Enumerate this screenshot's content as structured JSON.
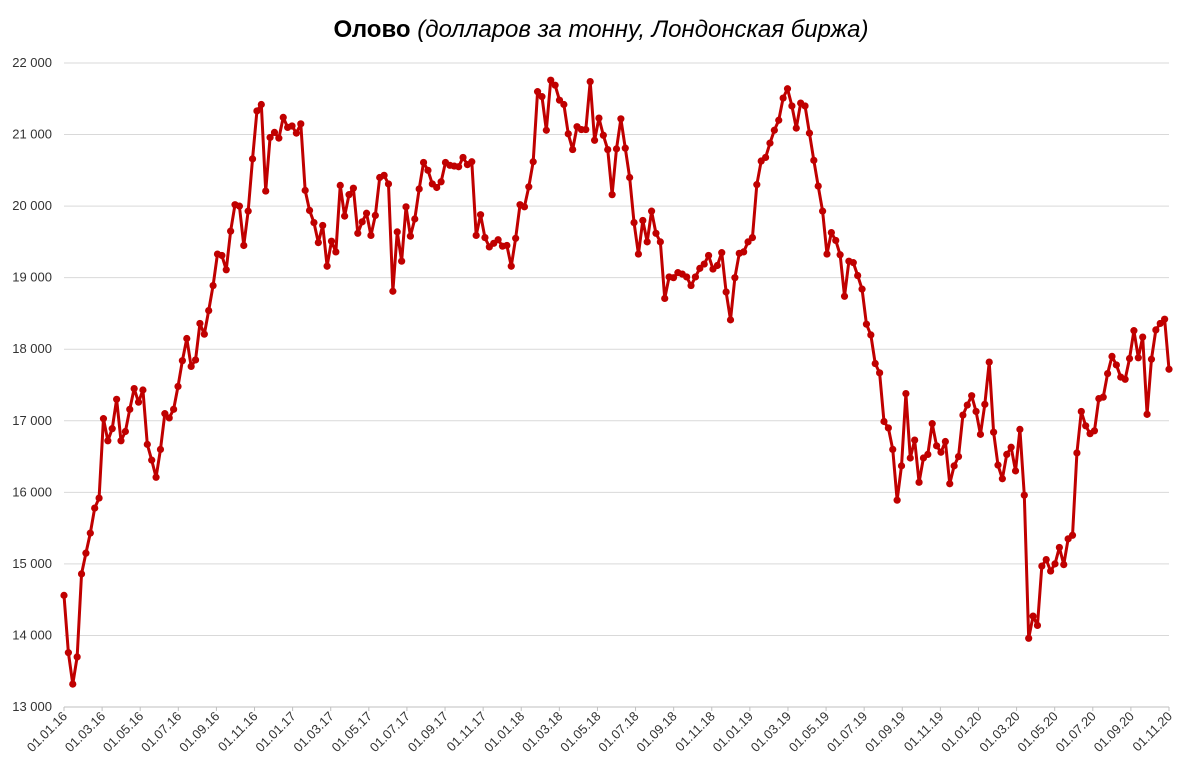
{
  "chart_data": {
    "type": "line",
    "title": {
      "bold": "Олово",
      "italic": " (долларов за тонну, Лондонская биржа)"
    },
    "xlabel": "",
    "ylabel": "",
    "ylim": [
      13000,
      22000
    ],
    "yticks": [
      13000,
      14000,
      15000,
      16000,
      17000,
      18000,
      19000,
      20000,
      21000,
      22000
    ],
    "ytick_labels": [
      "13 000",
      "14 000",
      "15 000",
      "16 000",
      "17 000",
      "18 000",
      "19 000",
      "20 000",
      "21 000",
      "22 000"
    ],
    "xtick_labels": [
      "01.01.16",
      "01.03.16",
      "01.05.16",
      "01.07.16",
      "01.09.16",
      "01.11.16",
      "01.01.17",
      "01.03.17",
      "01.05.17",
      "01.07.17",
      "01.09.17",
      "01.11.17",
      "01.01.18",
      "01.03.18",
      "01.05.18",
      "01.07.18",
      "01.09.18",
      "01.11.18",
      "01.01.19",
      "01.03.19",
      "01.05.19",
      "01.07.19",
      "01.09.19",
      "01.11.19",
      "01.01.20",
      "01.03.20",
      "01.05.20",
      "01.07.20",
      "01.09.20",
      "01.11.20"
    ],
    "grid": "horizontal",
    "legend": "none",
    "line_color": "#C00000",
    "series": [
      {
        "values": [
          14560,
          13760,
          13320,
          13700,
          14860,
          15150,
          15430,
          15780,
          15920,
          17030,
          16720,
          16890,
          17300,
          16720,
          16850,
          17160,
          17450,
          17260,
          17430,
          16670,
          16450,
          16210,
          16600,
          17100,
          17040,
          17160,
          17480,
          17840,
          18150,
          17760,
          17850,
          18360,
          18210,
          18540,
          18890,
          19330,
          19310,
          19110,
          19650,
          20020,
          20000,
          19450,
          19930,
          20660,
          21330,
          21420,
          20210,
          20960,
          21030,
          20950,
          21240,
          21100,
          21120,
          21020,
          21150,
          20220,
          19940,
          19770,
          19490,
          19730,
          19160,
          19510,
          19360,
          20290,
          19860,
          20160,
          20250,
          19620,
          19780,
          19900,
          19590,
          19870,
          20400,
          20430,
          20310,
          18810,
          19640,
          19230,
          19990,
          19580,
          19820,
          20240,
          20610,
          20500,
          20310,
          20260,
          20340,
          20610,
          20570,
          20560,
          20550,
          20680,
          20580,
          20620,
          19590,
          19880,
          19560,
          19430,
          19480,
          19530,
          19440,
          19450,
          19160,
          19550,
          20020,
          19990,
          20270,
          20620,
          21600,
          21530,
          21060,
          21760,
          21690,
          21480,
          21420,
          21010,
          20790,
          21110,
          21070,
          21070,
          21740,
          20920,
          21230,
          20990,
          20790,
          20160,
          20800,
          21220,
          20810,
          20400,
          19770,
          19330,
          19800,
          19500,
          19930,
          19620,
          19500,
          18710,
          19010,
          19000,
          19070,
          19050,
          19010,
          18890,
          19010,
          19130,
          19190,
          19310,
          19120,
          19170,
          19350,
          18800,
          18410,
          19000,
          19340,
          19360,
          19500,
          19560,
          20300,
          20630,
          20680,
          20880,
          21060,
          21200,
          21510,
          21640,
          21400,
          21090,
          21440,
          21400,
          21020,
          20640,
          20280,
          19930,
          19330,
          19630,
          19520,
          19320,
          18740,
          19230,
          19210,
          19030,
          18840,
          18350,
          18200,
          17800,
          17670,
          16990,
          16900,
          16600,
          15890,
          16370,
          17380,
          16480,
          16730,
          16140,
          16480,
          16530,
          16960,
          16650,
          16560,
          16710,
          16120,
          16370,
          16500,
          17080,
          17220,
          17350,
          17130,
          16810,
          17230,
          17820,
          16840,
          16380,
          16190,
          16530,
          16630,
          16300,
          16880,
          15960,
          13960,
          14270,
          14140,
          14970,
          15060,
          14900,
          15000,
          15230,
          14990,
          15350,
          15400,
          16550,
          17130,
          16930,
          16820,
          16860,
          17310,
          17330,
          17660,
          17900,
          17780,
          17610,
          17580,
          17870,
          18260,
          17880,
          18170,
          17090,
          17860,
          18270,
          18360,
          18420,
          17720
        ]
      }
    ]
  }
}
